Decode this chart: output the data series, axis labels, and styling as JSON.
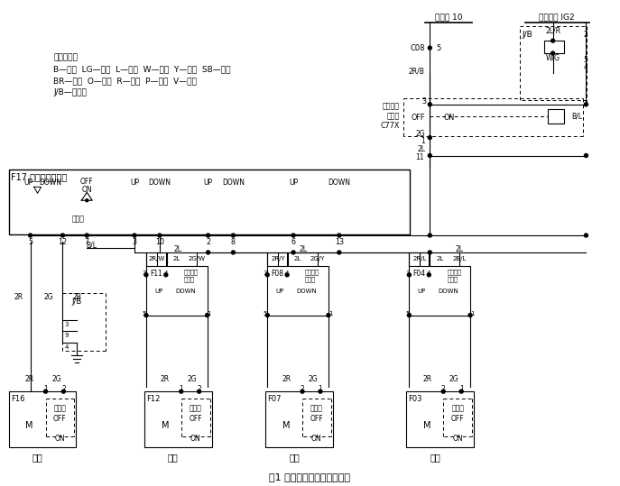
{
  "title": "图1 基础车型电动车窗线路图",
  "bg_color": "#ffffff",
  "line_color": "#000000",
  "legend_lines": [
    "线色代号：",
    "B—黑色  LG—浅绿  L—蓝色  W—白色  Y—黄色  SB—天蓝",
    "BR—棕色  O—橙色  R—红色  P—粉红  V—紫色",
    "J/B—接线盒"
  ],
  "title_fs": 7.5,
  "legend_fs": 6.5,
  "main_switch_label": "F17 电动车窗主开关",
  "fuse_label": "易熔线 10",
  "switch_label": "点火开关 IG2",
  "relay_label": "电动车窗\n继电器\nC77X"
}
